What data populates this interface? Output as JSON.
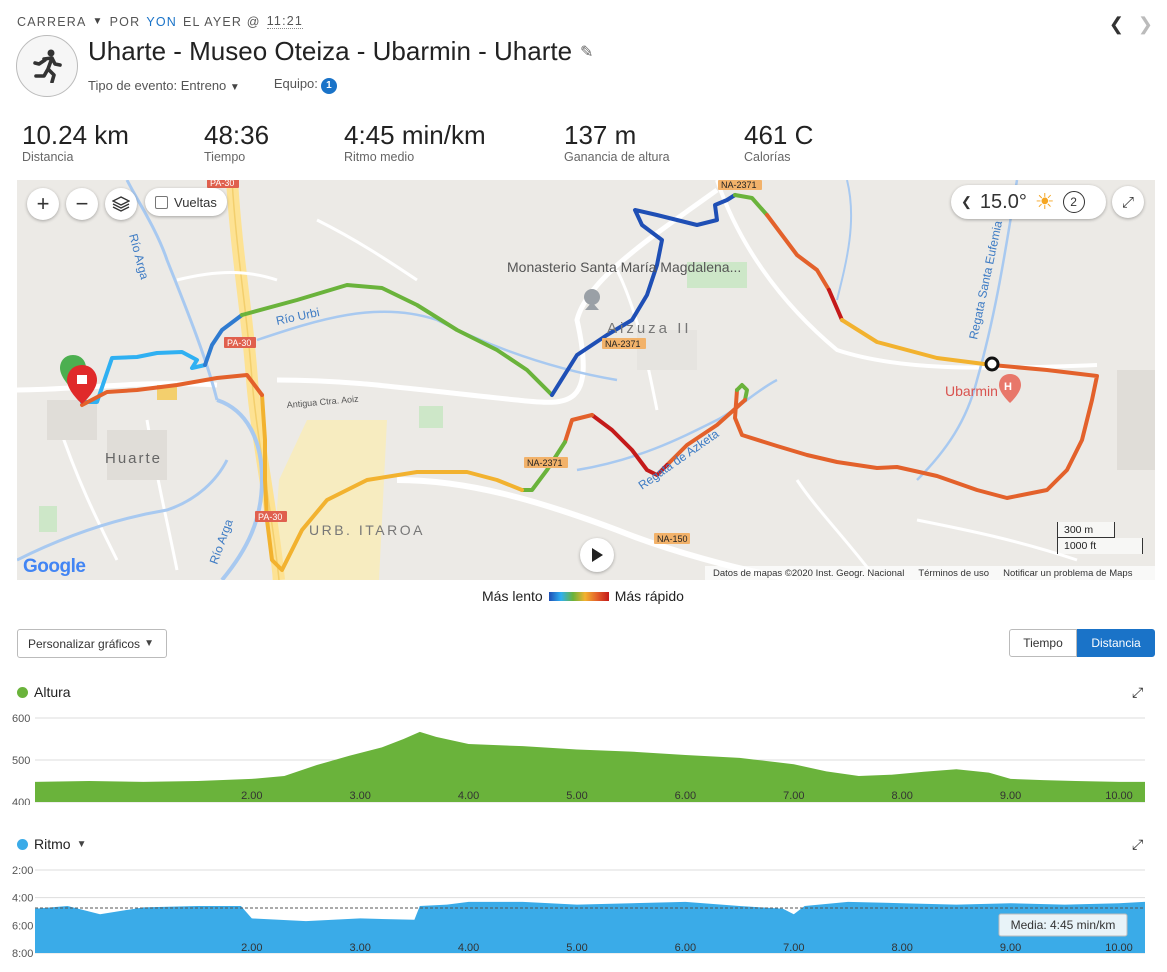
{
  "header": {
    "activity_type": "CARRERA",
    "by": "POR",
    "user": "YON",
    "when": "EL AYER @",
    "time": "11:21"
  },
  "activity": {
    "title": "Uharte - Museo Oteiza - Ubarmin - Uharte",
    "event_type": "Tipo de evento: Entreno",
    "team_label": "Equipo:",
    "team_count": "1"
  },
  "stats": [
    {
      "value": "10.24 km",
      "label": "Distancia"
    },
    {
      "value": "48:36",
      "label": "Tiempo"
    },
    {
      "value": "4:45 min/km",
      "label": "Ritmo medio"
    },
    {
      "value": "137 m",
      "label": "Ganancia de altura"
    },
    {
      "value": "461 C",
      "label": "Calorías"
    }
  ],
  "map": {
    "laps_label": "Vueltas",
    "temperature": "15.0°",
    "wind_value": "2",
    "attribution": "Datos de mapas ©2020 Inst. Geogr. Nacional",
    "terms": "Términos de uso",
    "report": "Notificar un problema de Maps",
    "scale_metric": "300 m",
    "scale_imperial": "1000 ft",
    "google": "Google",
    "labels": {
      "monastery": "Monasterio Santa María Magdalena...",
      "aizuza": "Aizuza II",
      "ubarmin": "Ubarmin",
      "huarte": "Huarte",
      "itaroa": "URB. ITAROA",
      "rio_urbi": "Río Urbi",
      "rio_arga": "Río Arga",
      "regata": "Regata Santa Eufemia",
      "azketa": "Regata de Azketa",
      "antigua": "Antigua Ctra. Aoiz",
      "pa30": "PA-30",
      "na2371": "NA-2371",
      "na150": "NA-150"
    }
  },
  "pace_legend": {
    "slow": "Más lento",
    "fast": "Más rápido"
  },
  "controls": {
    "customize": "Personalizar gráficos",
    "time": "Tiempo",
    "distance": "Distancia"
  },
  "colors": {
    "accent": "#1a73c8",
    "altitude": "#6ab33b",
    "pace": "#3aabe8"
  },
  "chart_data": [
    {
      "type": "area",
      "title": "Altura",
      "ylim": [
        400,
        600
      ],
      "yticks": [
        "600",
        "500",
        "400"
      ],
      "xticks": [
        "2.00",
        "3.00",
        "4.00",
        "5.00",
        "6.00",
        "7.00",
        "8.00",
        "9.00",
        "10.00"
      ],
      "x": [
        0,
        0.5,
        1.0,
        1.5,
        2.0,
        2.3,
        2.6,
        2.9,
        3.2,
        3.4,
        3.55,
        3.7,
        4.0,
        4.5,
        5.0,
        5.5,
        6.0,
        6.5,
        7.0,
        7.3,
        7.6,
        7.9,
        8.2,
        8.5,
        8.8,
        9.0,
        9.3,
        9.6,
        10.0,
        10.24
      ],
      "values": [
        448,
        450,
        448,
        450,
        455,
        462,
        488,
        510,
        530,
        550,
        567,
        555,
        538,
        533,
        525,
        520,
        512,
        505,
        490,
        473,
        462,
        465,
        472,
        478,
        470,
        455,
        452,
        450,
        448,
        448
      ]
    },
    {
      "type": "area",
      "title": "Ritmo",
      "ylim": [
        "2:00",
        "8:00"
      ],
      "yticks": [
        "2:00",
        "4:00",
        "6:00",
        "8:00"
      ],
      "xticks": [
        "2.00",
        "3.00",
        "4.00",
        "5.00",
        "6.00",
        "7.00",
        "8.00",
        "9.00",
        "10.00"
      ],
      "x": [
        0,
        0.3,
        0.6,
        1.0,
        1.5,
        1.9,
        2.0,
        2.5,
        3.0,
        3.5,
        3.55,
        3.8,
        4.0,
        4.5,
        5.0,
        5.5,
        6.0,
        6.5,
        6.9,
        7.0,
        7.1,
        7.5,
        8.0,
        8.5,
        9.0,
        9.5,
        10.0,
        10.24
      ],
      "values": [
        4.8,
        4.6,
        5.2,
        4.7,
        4.6,
        4.6,
        5.5,
        5.7,
        5.5,
        5.6,
        4.6,
        4.5,
        4.3,
        4.3,
        4.5,
        4.4,
        4.3,
        4.6,
        4.8,
        5.2,
        4.6,
        4.3,
        4.4,
        4.5,
        4.4,
        4.5,
        4.4,
        4.3
      ],
      "average_label": "Media: 4:45 min/km",
      "average": 4.75
    }
  ]
}
